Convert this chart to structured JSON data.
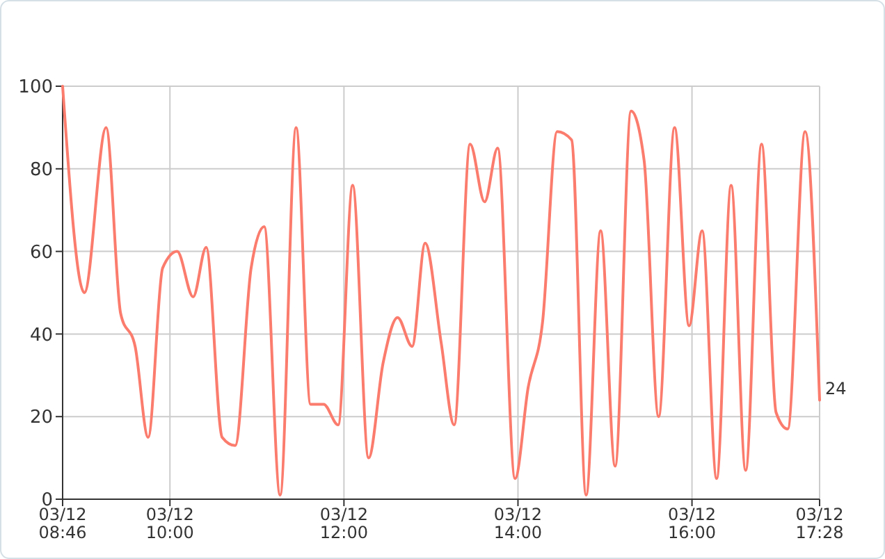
{
  "chart_data": {
    "type": "line",
    "x": [
      "--03-12T08:46",
      "--03-12T09:01",
      "--03-12T09:16",
      "--03-12T09:26",
      "--03-12T09:36",
      "--03-12T09:45",
      "--03-12T09:55",
      "--03-12T10:05",
      "--03-12T10:16",
      "--03-12T10:25",
      "--03-12T10:36",
      "--03-12T10:45",
      "--03-12T10:56",
      "--03-12T11:05",
      "--03-12T11:16",
      "--03-12T11:27",
      "--03-12T11:37",
      "--03-12T11:46",
      "--03-12T11:56",
      "--03-12T12:06",
      "--03-12T12:17",
      "--03-12T12:27",
      "--03-12T12:37",
      "--03-12T12:47",
      "--03-12T12:56",
      "--03-12T13:07",
      "--03-12T13:16",
      "--03-12T13:27",
      "--03-12T13:37",
      "--03-12T13:46",
      "--03-12T13:58",
      "--03-12T14:07",
      "--03-12T14:17",
      "--03-12T14:27",
      "--03-12T14:37",
      "--03-12T14:47",
      "--03-12T14:57",
      "--03-12T15:07",
      "--03-12T15:18",
      "--03-12T15:27",
      "--03-12T15:37",
      "--03-12T15:48",
      "--03-12T15:58",
      "--03-12T16:07",
      "--03-12T16:17",
      "--03-12T16:27",
      "--03-12T16:37",
      "--03-12T16:48",
      "--03-12T16:58",
      "--03-12T17:06",
      "--03-12T17:18",
      "--03-12T17:28"
    ],
    "series": [
      {
        "color": "#fb7b6d",
        "values": [
          100,
          50,
          90,
          45,
          37,
          15,
          56,
          60,
          49,
          61,
          15,
          13,
          56,
          66,
          1,
          90,
          23,
          23,
          18,
          76,
          10,
          33,
          44,
          37,
          62,
          38,
          18,
          86,
          72,
          85,
          5,
          27,
          43,
          89,
          87,
          1,
          65,
          8,
          94,
          82,
          20,
          90,
          42,
          65,
          5,
          76,
          7,
          86,
          21,
          17,
          89,
          24
        ],
        "value_labels": [
          null,
          null,
          null,
          null,
          null,
          null,
          null,
          null,
          null,
          null,
          null,
          null,
          null,
          null,
          null,
          null,
          null,
          null,
          null,
          null,
          null,
          null,
          null,
          null,
          null,
          null,
          null,
          null,
          null,
          null,
          null,
          null,
          null,
          null,
          null,
          null,
          null,
          null,
          null,
          null,
          null,
          null,
          null,
          null,
          null,
          null,
          null,
          null,
          null,
          null,
          null,
          "24"
        ]
      }
    ],
    "xlim": [
      "--03-12T08:46",
      "--03-12T17:28"
    ],
    "xticks": [
      {
        "value": "--03-12T08:46",
        "label": "03/12\n08:46"
      },
      {
        "value": "--03-12T10:00",
        "label": "03/12\n10:00"
      },
      {
        "value": "--03-12T12:00",
        "label": "03/12\n12:00"
      },
      {
        "value": "--03-12T14:00",
        "label": "03/12\n14:00"
      },
      {
        "value": "--03-12T16:00",
        "label": "03/12\n16:00"
      },
      {
        "value": "--03-12T17:28",
        "label": "03/12\n17:28"
      }
    ],
    "ylim": [
      0,
      100
    ],
    "yticks": [
      0,
      20,
      40,
      60,
      80,
      100
    ],
    "grid": true
  }
}
